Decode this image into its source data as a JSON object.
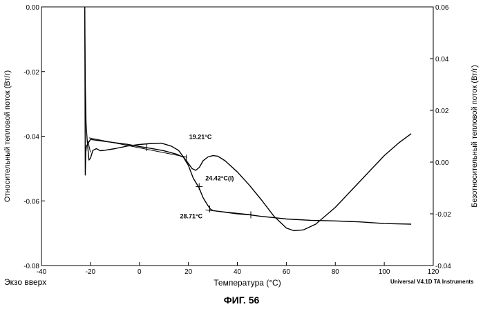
{
  "chart_data": {
    "type": "line",
    "xlabel": "Температура  (°C)",
    "ylabel_left": "Относительный тепловой поток (Вт/г)",
    "ylabel_right": "Безотносительный тепловой поток (Вт/г)",
    "xlim": [
      -40,
      120
    ],
    "ylim_left": [
      -0.08,
      0.0
    ],
    "ylim_right": [
      -0.04,
      0.06
    ],
    "x_ticks": [
      "-40",
      "-20",
      "0",
      "20",
      "40",
      "60",
      "80",
      "100",
      "120"
    ],
    "y_left_ticks": [
      "0.00",
      "-0.02",
      "-0.04",
      "-0.06",
      "-0.08"
    ],
    "y_right_ticks": [
      "0.06",
      "0.04",
      "0.02",
      "0.00",
      "-0.02",
      "-0.04"
    ],
    "series": [
      {
        "axis": "left",
        "points": [
          [
            -22.3,
            -0.001
          ],
          [
            -22.2,
            -0.03
          ],
          [
            -22.1,
            -0.052
          ],
          [
            -21.9,
            -0.045
          ],
          [
            -21.6,
            -0.043
          ],
          [
            -20,
            -0.041
          ],
          [
            -15,
            -0.0415
          ],
          [
            -10,
            -0.042
          ],
          [
            -5,
            -0.0425
          ],
          [
            0,
            -0.0432
          ],
          [
            5,
            -0.0438
          ],
          [
            10,
            -0.0445
          ],
          [
            15,
            -0.0455
          ],
          [
            18,
            -0.0465
          ],
          [
            20,
            -0.049
          ],
          [
            22,
            -0.053
          ],
          [
            24.4,
            -0.056
          ],
          [
            26,
            -0.059
          ],
          [
            28,
            -0.0615
          ],
          [
            29,
            -0.0625
          ],
          [
            30,
            -0.063
          ],
          [
            35,
            -0.0635
          ],
          [
            40,
            -0.064
          ],
          [
            45,
            -0.0643
          ],
          [
            50,
            -0.0648
          ],
          [
            55,
            -0.0652
          ],
          [
            60,
            -0.0656
          ],
          [
            70,
            -0.066
          ],
          [
            80,
            -0.0662
          ],
          [
            90,
            -0.0665
          ],
          [
            100,
            -0.067
          ],
          [
            111,
            -0.0672
          ]
        ]
      },
      {
        "axis": "right",
        "points": [
          [
            -22.3,
            0.06
          ],
          [
            -22.1,
            0.03
          ],
          [
            -21.8,
            0.015
          ],
          [
            -21.3,
            0.008
          ],
          [
            -20.6,
            0.0008
          ],
          [
            -20,
            0.0015
          ],
          [
            -19,
            0.0045
          ],
          [
            -17.6,
            0.0052
          ],
          [
            -16,
            0.0044
          ],
          [
            -14,
            0.0046
          ],
          [
            -10,
            0.0052
          ],
          [
            -5,
            0.0062
          ],
          [
            0,
            0.0068
          ],
          [
            5,
            0.0072
          ],
          [
            9,
            0.0073
          ],
          [
            13,
            0.0062
          ],
          [
            16,
            0.0045
          ],
          [
            18,
            0.002
          ],
          [
            20,
            -0.0005
          ],
          [
            21.5,
            -0.0025
          ],
          [
            23,
            -0.0032
          ],
          [
            24.5,
            -0.002
          ],
          [
            26,
            0.0005
          ],
          [
            28,
            0.002
          ],
          [
            30,
            0.0025
          ],
          [
            32,
            0.0023
          ],
          [
            35,
            0.0005
          ],
          [
            40,
            -0.0038
          ],
          [
            45,
            -0.009
          ],
          [
            50,
            -0.0148
          ],
          [
            55,
            -0.021
          ],
          [
            60,
            -0.0255
          ],
          [
            63,
            -0.0265
          ],
          [
            67,
            -0.0262
          ],
          [
            72,
            -0.024
          ],
          [
            80,
            -0.0175
          ],
          [
            90,
            -0.0075
          ],
          [
            100,
            0.0025
          ],
          [
            106,
            0.0075
          ],
          [
            111,
            0.011
          ]
        ]
      }
    ],
    "annotations": [
      {
        "text": "19.21°C",
        "x": 19.2,
        "y_left": -0.0408
      },
      {
        "text": "24.42°C(I)",
        "x": 24.4,
        "y_left": -0.0536
      },
      {
        "text": "28.71°C",
        "x": 28.7,
        "y_left": -0.0647
      }
    ],
    "grid": false
  },
  "footer": {
    "left": "Экзо вверх",
    "right": "Universal V4.1D TA Instruments"
  },
  "figure_label": "ФИГ. 56"
}
